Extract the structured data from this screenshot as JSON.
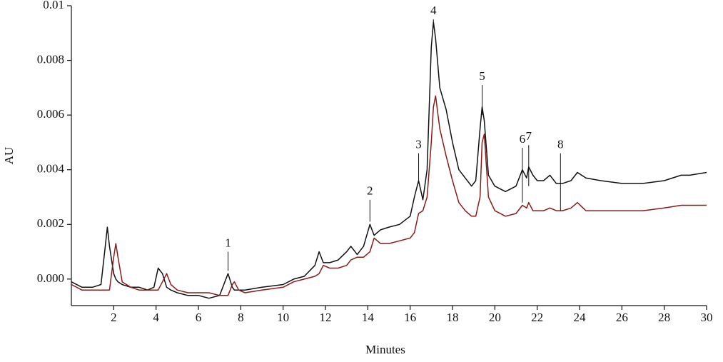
{
  "chart_data": {
    "type": "line",
    "xlabel": "Minutes",
    "ylabel": "AU",
    "x": [
      0,
      0.5,
      1,
      1.4,
      1.6,
      1.7,
      1.8,
      2.0,
      2.1,
      2.2,
      2.4,
      2.8,
      3.2,
      3.6,
      3.9,
      4.1,
      4.3,
      4.5,
      4.7,
      5,
      5.5,
      6,
      6.5,
      7,
      7.2,
      7.4,
      7.6,
      7.7,
      7.9,
      8.2,
      9,
      10,
      10.5,
      11,
      11.5,
      11.7,
      11.9,
      12.2,
      12.6,
      13,
      13.2,
      13.5,
      13.8,
      14.1,
      14.3,
      14.6,
      15,
      15.5,
      16,
      16.2,
      16.4,
      16.6,
      16.8,
      17,
      17.1,
      17.2,
      17.4,
      17.7,
      18,
      18.3,
      18.6,
      18.9,
      19.1,
      19.3,
      19.4,
      19.5,
      19.7,
      20,
      20.5,
      21,
      21.3,
      21.5,
      21.6,
      21.8,
      22,
      22.3,
      22.6,
      22.9,
      23.2,
      23.6,
      23.9,
      24.3,
      25,
      26,
      27,
      28,
      28.8,
      29.2,
      30
    ],
    "series": [
      {
        "color": "#111111",
        "values": [
          -0.0001,
          -0.0003,
          -0.0003,
          -0.0002,
          0.0012,
          0.0019,
          0.0012,
          0.0002,
          0.0,
          -0.0001,
          -0.0002,
          -0.0003,
          -0.0003,
          -0.0004,
          -0.0003,
          0.0004,
          0.0002,
          -0.0003,
          -0.0004,
          -0.0005,
          -0.0006,
          -0.0006,
          -0.0007,
          -0.0006,
          -0.0002,
          0.0002,
          -0.0003,
          -0.0004,
          -0.0004,
          -0.0004,
          -0.0003,
          -0.0002,
          0.0,
          0.0001,
          0.0005,
          0.001,
          0.0006,
          0.0006,
          0.0007,
          0.001,
          0.0012,
          0.0009,
          0.0012,
          0.002,
          0.0016,
          0.0018,
          0.0019,
          0.002,
          0.0023,
          0.003,
          0.0036,
          0.0029,
          0.004,
          0.0085,
          0.0094,
          0.0088,
          0.007,
          0.0062,
          0.005,
          0.004,
          0.0037,
          0.0034,
          0.0036,
          0.0055,
          0.0063,
          0.0058,
          0.0038,
          0.0034,
          0.0032,
          0.0034,
          0.004,
          0.0037,
          0.0041,
          0.0038,
          0.0036,
          0.0036,
          0.0038,
          0.0035,
          0.0035,
          0.0036,
          0.0039,
          0.0037,
          0.0036,
          0.0035,
          0.0035,
          0.0036,
          0.0038,
          0.0038,
          0.0039
        ]
      },
      {
        "color": "#8b1a1a",
        "values": [
          -0.0002,
          -0.0004,
          -0.0004,
          -0.0004,
          -0.0004,
          -0.0004,
          -0.0004,
          0.0008,
          0.0013,
          0.0008,
          -0.0001,
          -0.0003,
          -0.0004,
          -0.0004,
          -0.0004,
          -0.0004,
          -0.0001,
          0.0002,
          -0.0002,
          -0.0004,
          -0.0005,
          -0.0005,
          -0.0005,
          -0.0006,
          -0.0006,
          -0.0006,
          -0.0002,
          -0.0001,
          -0.0004,
          -0.0005,
          -0.0004,
          -0.0003,
          -0.0001,
          0.0,
          0.0001,
          0.0002,
          0.0005,
          0.0004,
          0.0004,
          0.0005,
          0.0007,
          0.0008,
          0.0008,
          0.001,
          0.0015,
          0.0013,
          0.0013,
          0.0014,
          0.0015,
          0.0017,
          0.0024,
          0.0025,
          0.003,
          0.005,
          0.0063,
          0.0067,
          0.0055,
          0.0045,
          0.0036,
          0.0028,
          0.0025,
          0.0023,
          0.0023,
          0.003,
          0.005,
          0.0053,
          0.003,
          0.0025,
          0.0023,
          0.0024,
          0.0027,
          0.0026,
          0.0028,
          0.0025,
          0.0025,
          0.0025,
          0.0026,
          0.0025,
          0.0025,
          0.0026,
          0.0028,
          0.0025,
          0.0025,
          0.0025,
          0.0025,
          0.0026,
          0.0027,
          0.0027,
          0.0027
        ]
      }
    ],
    "annotations": [
      {
        "label": "1",
        "x": 7.4,
        "y": 0.001,
        "y_end": 0.0003
      },
      {
        "label": "2",
        "x": 14.1,
        "y": 0.0029,
        "y_end": 0.0021
      },
      {
        "label": "3",
        "x": 16.4,
        "y": 0.0046,
        "y_end": 0.0035
      },
      {
        "label": "4",
        "x": 17.1,
        "y": 0.0095,
        "y_end": 0.0093
      },
      {
        "label": "5",
        "x": 19.4,
        "y": 0.0071,
        "y_end": 0.006
      },
      {
        "label": "6",
        "x": 21.3,
        "y": 0.0048,
        "y_end": 0.0028
      },
      {
        "label": "7",
        "x": 21.6,
        "y": 0.0049,
        "y_end": 0.0034
      },
      {
        "label": "8",
        "x": 23.1,
        "y": 0.0046,
        "y_end": 0.0025
      }
    ],
    "xlim": [
      0,
      30
    ],
    "xticks": [
      2,
      4,
      6,
      8,
      10,
      12,
      14,
      16,
      18,
      20,
      22,
      24,
      26,
      28,
      30
    ],
    "ylim": [
      -0.00097,
      0.01
    ],
    "yticks": [
      {
        "value": 0,
        "label": "0.000"
      },
      {
        "value": 0.002,
        "label": "0.002"
      },
      {
        "value": 0.004,
        "label": "0.004"
      },
      {
        "value": 0.006,
        "label": "0.006"
      },
      {
        "value": 0.008,
        "label": "0.008"
      },
      0.01
    ],
    "grid": false
  }
}
